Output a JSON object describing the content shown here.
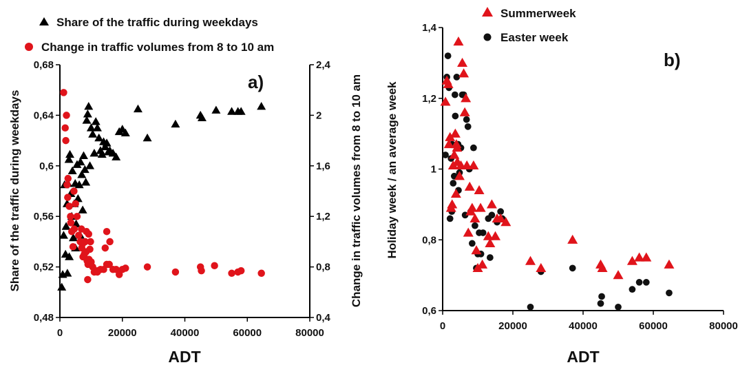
{
  "chart_data": [
    {
      "panel": "a)",
      "type": "scatter",
      "xlabel": "ADT",
      "ylabel": "Share of the traffic during weekdays",
      "y2label": "Change in traffic volumes from 8 to 10 am",
      "xlim": [
        0,
        80000
      ],
      "ylim": [
        0.48,
        0.68
      ],
      "y2lim": [
        0.4,
        2.4
      ],
      "xticks": [
        "0",
        "20000",
        "40000",
        "60000",
        "80000"
      ],
      "yticks": [
        "0,48",
        "0,52",
        "0,56",
        "0,6",
        "0,64",
        "0,68"
      ],
      "y2ticks": [
        "0,4",
        "0,8",
        "1,2",
        "1,6",
        "2",
        "2,4"
      ],
      "grid": false,
      "legend_position": "top",
      "series": [
        {
          "name": "Share of the traffic during weekdays",
          "axis": "left",
          "marker": "triangle",
          "color": "#000000",
          "points": [
            [
              600,
              0.504
            ],
            [
              900,
              0.514
            ],
            [
              1200,
              0.545
            ],
            [
              1500,
              0.585
            ],
            [
              2000,
              0.552
            ],
            [
              2300,
              0.57
            ],
            [
              2600,
              0.586
            ],
            [
              2900,
              0.605
            ],
            [
              3200,
              0.609
            ],
            [
              3500,
              0.578
            ],
            [
              3800,
              0.56
            ],
            [
              4000,
              0.596
            ],
            [
              4300,
              0.543
            ],
            [
              4600,
              0.57
            ],
            [
              4900,
              0.586
            ],
            [
              5200,
              0.554
            ],
            [
              5500,
              0.601
            ],
            [
              5800,
              0.574
            ],
            [
              6200,
              0.585
            ],
            [
              6600,
              0.603
            ],
            [
              7000,
              0.593
            ],
            [
              7300,
              0.565
            ],
            [
              7600,
              0.608
            ],
            [
              8000,
              0.597
            ],
            [
              8300,
              0.587
            ],
            [
              8600,
              0.636
            ],
            [
              8900,
              0.641
            ],
            [
              9200,
              0.647
            ],
            [
              9600,
              0.6
            ],
            [
              10000,
              0.63
            ],
            [
              10500,
              0.625
            ],
            [
              11000,
              0.61
            ],
            [
              11500,
              0.635
            ],
            [
              12000,
              0.63
            ],
            [
              12500,
              0.622
            ],
            [
              13000,
              0.612
            ],
            [
              13500,
              0.609
            ],
            [
              14000,
              0.619
            ],
            [
              14500,
              0.615
            ],
            [
              15000,
              0.618
            ],
            [
              15500,
              0.611
            ],
            [
              16000,
              0.612
            ],
            [
              17000,
              0.61
            ],
            [
              18000,
              0.607
            ],
            [
              19000,
              0.627
            ],
            [
              20000,
              0.629
            ],
            [
              21000,
              0.626
            ],
            [
              25000,
              0.645
            ],
            [
              28000,
              0.622
            ],
            [
              37000,
              0.633
            ],
            [
              45000,
              0.64
            ],
            [
              45500,
              0.638
            ],
            [
              50000,
              0.644
            ],
            [
              55000,
              0.643
            ],
            [
              57000,
              0.643
            ],
            [
              58000,
              0.643
            ],
            [
              64500,
              0.647
            ],
            [
              1800,
              0.53
            ],
            [
              3000,
              0.528
            ],
            [
              5000,
              0.535
            ],
            [
              6500,
              0.545
            ],
            [
              2400,
              0.515
            ]
          ]
        },
        {
          "name": "Change in traffic volumes from 8 to 10 am",
          "axis": "right",
          "marker": "circle",
          "color": "#e0141b",
          "points": [
            [
              1200,
              2.18
            ],
            [
              1700,
              1.9
            ],
            [
              2100,
              2.0
            ],
            [
              1900,
              1.8
            ],
            [
              2300,
              1.45
            ],
            [
              2600,
              1.5
            ],
            [
              3000,
              1.28
            ],
            [
              3400,
              1.2
            ],
            [
              3800,
              1.08
            ],
            [
              4200,
              0.96
            ],
            [
              4500,
              1.4
            ],
            [
              5000,
              1.3
            ],
            [
              5500,
              1.2
            ],
            [
              6000,
              1.05
            ],
            [
              6500,
              1.0
            ],
            [
              7000,
              0.95
            ],
            [
              7400,
              0.88
            ],
            [
              7800,
              0.9
            ],
            [
              8100,
              1.0
            ],
            [
              8400,
              0.92
            ],
            [
              8700,
              0.85
            ],
            [
              9000,
              0.82
            ],
            [
              9300,
              0.86
            ],
            [
              9600,
              0.94
            ],
            [
              10000,
              0.84
            ],
            [
              10500,
              0.8
            ],
            [
              11000,
              0.76
            ],
            [
              12000,
              0.77
            ],
            [
              13000,
              0.78
            ],
            [
              14000,
              0.78
            ],
            [
              15000,
              0.82
            ],
            [
              15800,
              0.82
            ],
            [
              17000,
              0.78
            ],
            [
              18000,
              0.78
            ],
            [
              19000,
              0.74
            ],
            [
              20000,
              0.78
            ],
            [
              21000,
              0.79
            ],
            [
              6900,
              1.1
            ],
            [
              8500,
              1.08
            ],
            [
              9200,
              1.06
            ],
            [
              9800,
              1.0
            ],
            [
              14500,
              0.95
            ],
            [
              15000,
              1.08
            ],
            [
              16000,
              1.0
            ],
            [
              8900,
              0.7
            ],
            [
              12000,
              0.76
            ],
            [
              28000,
              0.8
            ],
            [
              37000,
              0.76
            ],
            [
              45000,
              0.8
            ],
            [
              45300,
              0.77
            ],
            [
              49500,
              0.81
            ],
            [
              55000,
              0.75
            ],
            [
              57000,
              0.76
            ],
            [
              58000,
              0.77
            ],
            [
              64500,
              0.75
            ],
            [
              2500,
              1.35
            ],
            [
              3500,
              1.15
            ],
            [
              4600,
              1.1
            ],
            [
              7200,
              0.98
            ]
          ]
        }
      ]
    },
    {
      "panel": "b)",
      "type": "scatter",
      "xlabel": "ADT",
      "ylabel": "Holiday week / an average week",
      "xlim": [
        0,
        80000
      ],
      "ylim": [
        0.6,
        1.4
      ],
      "xticks": [
        "0",
        "20000",
        "40000",
        "60000",
        "80000"
      ],
      "yticks": [
        "0,6",
        "0,8",
        "1",
        "1,2",
        "1,4"
      ],
      "grid": false,
      "legend_position": "top-left",
      "series": [
        {
          "name": "Summerweek",
          "marker": "triangle",
          "color": "#e0141b",
          "points": [
            [
              800,
              1.19
            ],
            [
              1200,
              1.25
            ],
            [
              1600,
              1.24
            ],
            [
              1800,
              1.07
            ],
            [
              2100,
              1.09
            ],
            [
              2400,
              0.89
            ],
            [
              2700,
              0.9
            ],
            [
              3000,
              1.01
            ],
            [
              3300,
              1.04
            ],
            [
              3600,
              1.1
            ],
            [
              3900,
              1.07
            ],
            [
              4200,
              1.02
            ],
            [
              4500,
              1.36
            ],
            [
              4800,
              0.98
            ],
            [
              5200,
              1.01
            ],
            [
              5600,
              1.3
            ],
            [
              6000,
              1.27
            ],
            [
              6300,
              1.16
            ],
            [
              6600,
              1.2
            ],
            [
              6900,
              1.01
            ],
            [
              7300,
              0.82
            ],
            [
              7700,
              0.95
            ],
            [
              8000,
              0.88
            ],
            [
              8400,
              0.89
            ],
            [
              8800,
              1.01
            ],
            [
              9200,
              0.86
            ],
            [
              9600,
              0.77
            ],
            [
              10000,
              0.72
            ],
            [
              10400,
              0.94
            ],
            [
              10800,
              0.89
            ],
            [
              11300,
              0.73
            ],
            [
              13000,
              0.81
            ],
            [
              13500,
              0.79
            ],
            [
              14000,
              0.9
            ],
            [
              15000,
              0.81
            ],
            [
              15500,
              0.86
            ],
            [
              16500,
              0.86
            ],
            [
              18000,
              0.85
            ],
            [
              25000,
              0.74
            ],
            [
              28000,
              0.72
            ],
            [
              37000,
              0.8
            ],
            [
              45000,
              0.73
            ],
            [
              45500,
              0.72
            ],
            [
              50000,
              0.7
            ],
            [
              54000,
              0.74
            ],
            [
              56000,
              0.75
            ],
            [
              58000,
              0.75
            ],
            [
              64500,
              0.73
            ],
            [
              3800,
              0.93
            ],
            [
              4100,
              1.06
            ]
          ]
        },
        {
          "name": "Easter week",
          "color": "#111111",
          "marker": "circle",
          "points": [
            [
              800,
              1.04
            ],
            [
              1200,
              1.26
            ],
            [
              1500,
              1.32
            ],
            [
              1800,
              1.23
            ],
            [
              2100,
              0.86
            ],
            [
              2400,
              1.03
            ],
            [
              2700,
              1.07
            ],
            [
              3000,
              0.96
            ],
            [
              3300,
              0.98
            ],
            [
              3600,
              1.15
            ],
            [
              4000,
              1.26
            ],
            [
              4400,
              1.07
            ],
            [
              4800,
              0.99
            ],
            [
              5200,
              1.06
            ],
            [
              5600,
              1.21
            ],
            [
              6000,
              1.21
            ],
            [
              6400,
              0.87
            ],
            [
              6800,
              1.14
            ],
            [
              7200,
              1.12
            ],
            [
              7600,
              1.0
            ],
            [
              8000,
              0.88
            ],
            [
              8400,
              0.79
            ],
            [
              8800,
              1.06
            ],
            [
              9200,
              0.84
            ],
            [
              9600,
              0.72
            ],
            [
              10000,
              0.76
            ],
            [
              10400,
              0.82
            ],
            [
              10900,
              0.76
            ],
            [
              11500,
              0.82
            ],
            [
              13000,
              0.86
            ],
            [
              13500,
              0.75
            ],
            [
              14000,
              0.87
            ],
            [
              15500,
              0.85
            ],
            [
              16500,
              0.88
            ],
            [
              17000,
              0.86
            ],
            [
              25000,
              0.61
            ],
            [
              28000,
              0.71
            ],
            [
              37000,
              0.72
            ],
            [
              45000,
              0.62
            ],
            [
              45300,
              0.64
            ],
            [
              50000,
              0.61
            ],
            [
              54000,
              0.66
            ],
            [
              56000,
              0.68
            ],
            [
              58000,
              0.68
            ],
            [
              64500,
              0.65
            ],
            [
              2600,
              0.88
            ],
            [
              3500,
              1.21
            ],
            [
              4500,
              0.94
            ]
          ]
        }
      ]
    }
  ]
}
